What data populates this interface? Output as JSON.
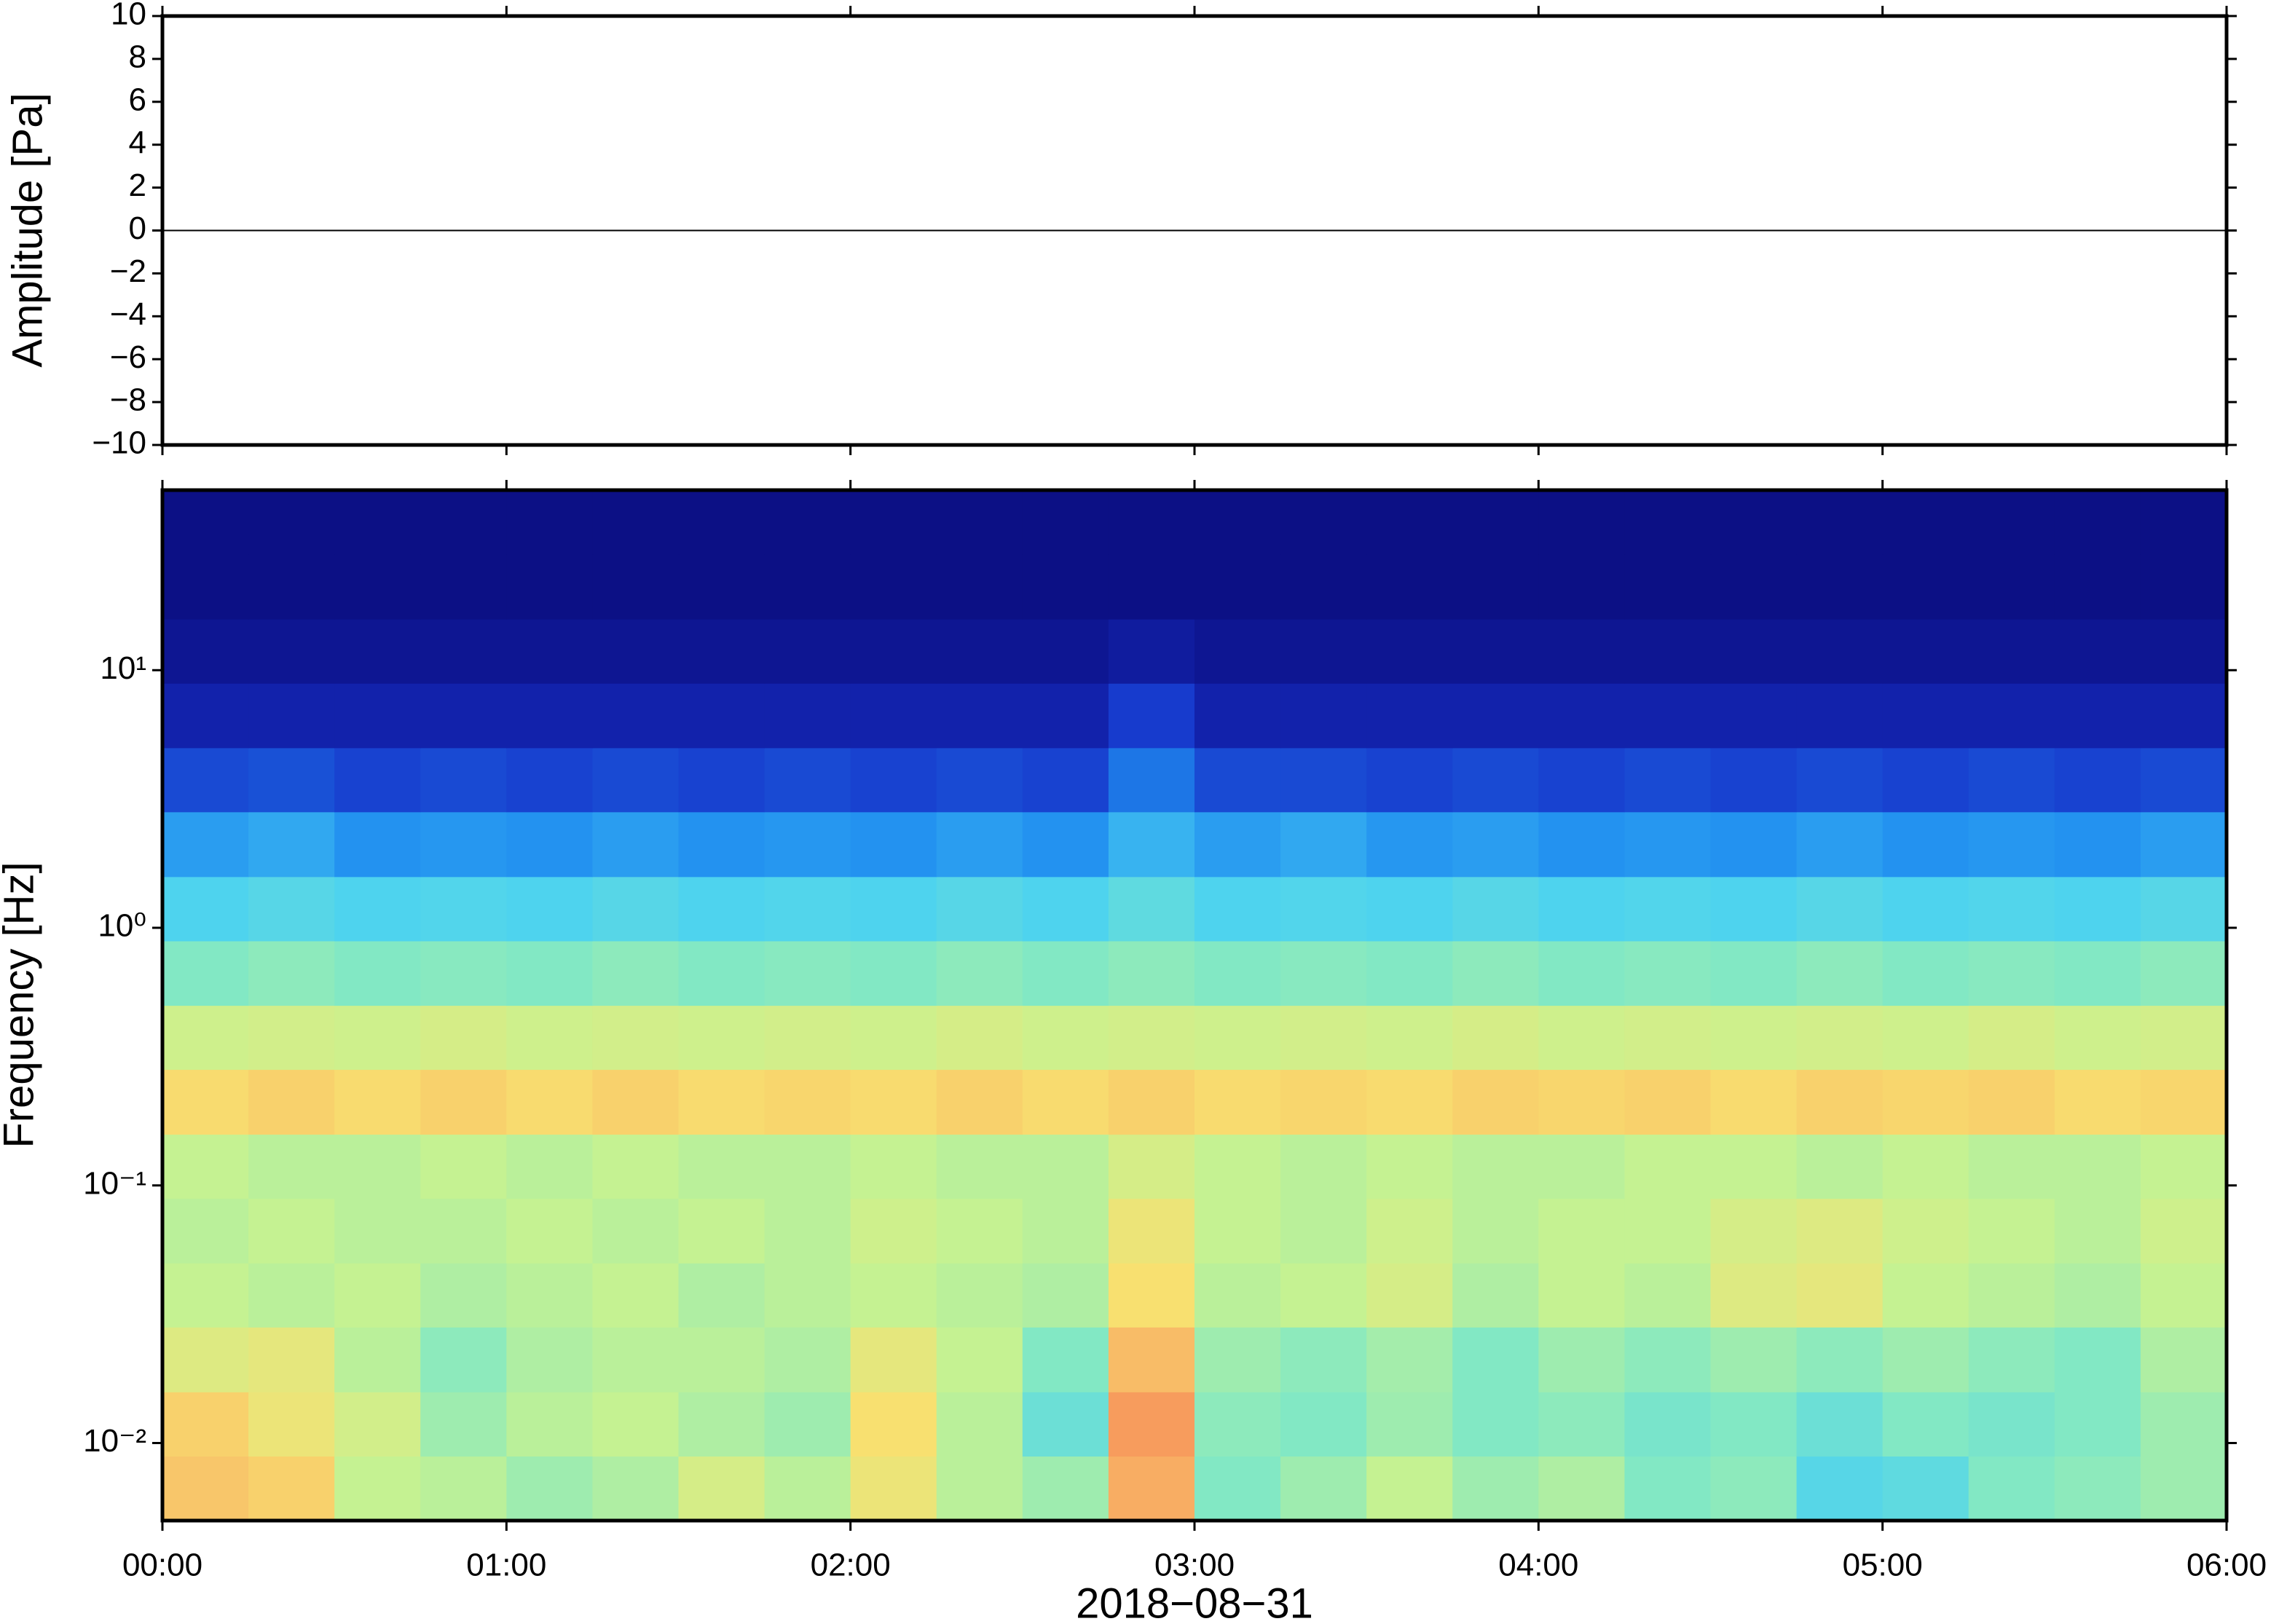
{
  "chart_data": [
    {
      "type": "line",
      "ylabel": "Amplitude [Pa]",
      "xlim": [
        0,
        360
      ],
      "ylim": [
        -10,
        10
      ],
      "yticks": [
        {
          "value": -10,
          "label": "−10"
        },
        {
          "value": -8,
          "label": "−8"
        },
        {
          "value": -6,
          "label": "−6"
        },
        {
          "value": -4,
          "label": "−4"
        },
        {
          "value": -2,
          "label": "−2"
        },
        0,
        2,
        4,
        6,
        8,
        10
      ],
      "x": [
        0,
        30,
        60,
        90,
        120,
        150,
        180,
        210,
        240,
        270,
        300,
        330,
        360
      ],
      "values": [
        0,
        0,
        0,
        0,
        0,
        0,
        0,
        0,
        0,
        0,
        0,
        0,
        0
      ],
      "color": "#000000"
    },
    {
      "type": "heatmap",
      "ylabel": "Frequency [Hz]",
      "xlabel": "2018−08−31",
      "xlim": [
        0,
        360
      ],
      "ylim": [
        0.005,
        50
      ],
      "log_y": true,
      "xticks": [
        {
          "value": 0,
          "label": "00:00"
        },
        {
          "value": 60,
          "label": "01:00"
        },
        {
          "value": 120,
          "label": "02:00"
        },
        {
          "value": 180,
          "label": "03:00"
        },
        {
          "value": 240,
          "label": "04:00"
        },
        {
          "value": 300,
          "label": "05:00"
        },
        {
          "value": 360,
          "label": "06:00"
        }
      ],
      "yticks": [
        {
          "value": 0.01,
          "label": "10⁻²"
        },
        {
          "value": 0.1,
          "label": "10⁻¹"
        },
        {
          "value": 1,
          "label": "10⁰"
        },
        {
          "value": 10,
          "label": "10¹"
        }
      ],
      "colormap": [
        "#0a0a78",
        "#1630c8",
        "#1f8cf0",
        "#4cd2f0",
        "#82e8c4",
        "#c8f290",
        "#f8e070",
        "#f8a060",
        "#e83020"
      ],
      "x_bins": [
        0,
        15,
        30,
        45,
        60,
        75,
        90,
        105,
        120,
        135,
        150,
        165,
        180,
        195,
        210,
        225,
        240,
        255,
        270,
        285,
        300,
        315,
        330,
        345,
        360
      ],
      "y_bins": [
        0.005,
        0.0089,
        0.0158,
        0.0282,
        0.05,
        0.089,
        0.158,
        0.282,
        0.5,
        0.89,
        1.58,
        2.82,
        5,
        8.9,
        15.8,
        28.2,
        50
      ],
      "values": [
        [
          0.8,
          0.78,
          0.62,
          0.6,
          0.55,
          0.58,
          0.66,
          0.6,
          0.72,
          0.6,
          0.55,
          0.85,
          0.5,
          0.55,
          0.62,
          0.55,
          0.58,
          0.5,
          0.52,
          0.4,
          0.42,
          0.5,
          0.52,
          0.55
        ],
        [
          0.78,
          0.72,
          0.65,
          0.55,
          0.6,
          0.62,
          0.58,
          0.55,
          0.75,
          0.6,
          0.45,
          0.88,
          0.52,
          0.5,
          0.55,
          0.5,
          0.52,
          0.48,
          0.5,
          0.45,
          0.5,
          0.48,
          0.5,
          0.55
        ],
        [
          0.68,
          0.7,
          0.6,
          0.52,
          0.58,
          0.6,
          0.6,
          0.58,
          0.7,
          0.62,
          0.5,
          0.82,
          0.55,
          0.52,
          0.56,
          0.5,
          0.55,
          0.52,
          0.55,
          0.52,
          0.55,
          0.52,
          0.5,
          0.58
        ],
        [
          0.62,
          0.6,
          0.62,
          0.58,
          0.6,
          0.62,
          0.58,
          0.6,
          0.62,
          0.6,
          0.58,
          0.75,
          0.6,
          0.62,
          0.66,
          0.58,
          0.62,
          0.6,
          0.68,
          0.7,
          0.62,
          0.6,
          0.58,
          0.62
        ],
        [
          0.6,
          0.62,
          0.6,
          0.6,
          0.62,
          0.6,
          0.62,
          0.6,
          0.64,
          0.62,
          0.6,
          0.72,
          0.62,
          0.6,
          0.64,
          0.6,
          0.62,
          0.62,
          0.66,
          0.68,
          0.64,
          0.62,
          0.6,
          0.64
        ],
        [
          0.62,
          0.6,
          0.6,
          0.62,
          0.6,
          0.62,
          0.6,
          0.6,
          0.62,
          0.6,
          0.6,
          0.66,
          0.62,
          0.6,
          0.62,
          0.6,
          0.6,
          0.62,
          0.62,
          0.6,
          0.62,
          0.6,
          0.6,
          0.62
        ],
        [
          0.76,
          0.78,
          0.76,
          0.78,
          0.76,
          0.78,
          0.76,
          0.77,
          0.76,
          0.78,
          0.76,
          0.78,
          0.76,
          0.77,
          0.76,
          0.78,
          0.77,
          0.78,
          0.76,
          0.78,
          0.77,
          0.78,
          0.76,
          0.77
        ],
        [
          0.64,
          0.65,
          0.64,
          0.66,
          0.64,
          0.65,
          0.64,
          0.65,
          0.64,
          0.66,
          0.64,
          0.65,
          0.64,
          0.65,
          0.64,
          0.66,
          0.64,
          0.65,
          0.64,
          0.65,
          0.64,
          0.66,
          0.64,
          0.65
        ],
        [
          0.5,
          0.52,
          0.5,
          0.51,
          0.5,
          0.52,
          0.5,
          0.51,
          0.5,
          0.52,
          0.5,
          0.52,
          0.5,
          0.51,
          0.5,
          0.52,
          0.5,
          0.51,
          0.5,
          0.52,
          0.5,
          0.51,
          0.5,
          0.52
        ],
        [
          0.38,
          0.4,
          0.38,
          0.39,
          0.38,
          0.4,
          0.38,
          0.39,
          0.38,
          0.4,
          0.38,
          0.42,
          0.38,
          0.39,
          0.38,
          0.4,
          0.38,
          0.39,
          0.38,
          0.4,
          0.38,
          0.39,
          0.38,
          0.4
        ],
        [
          0.28,
          0.3,
          0.26,
          0.27,
          0.26,
          0.28,
          0.26,
          0.27,
          0.26,
          0.28,
          0.26,
          0.32,
          0.28,
          0.3,
          0.27,
          0.28,
          0.26,
          0.27,
          0.26,
          0.28,
          0.26,
          0.27,
          0.26,
          0.28
        ],
        [
          0.16,
          0.17,
          0.15,
          0.16,
          0.15,
          0.16,
          0.15,
          0.16,
          0.15,
          0.16,
          0.15,
          0.22,
          0.16,
          0.16,
          0.15,
          0.16,
          0.15,
          0.16,
          0.15,
          0.16,
          0.15,
          0.16,
          0.15,
          0.16
        ],
        [
          0.08,
          0.08,
          0.08,
          0.08,
          0.08,
          0.08,
          0.08,
          0.08,
          0.08,
          0.08,
          0.08,
          0.14,
          0.08,
          0.08,
          0.08,
          0.08,
          0.08,
          0.08,
          0.08,
          0.08,
          0.08,
          0.08,
          0.08,
          0.08
        ],
        [
          0.04,
          0.04,
          0.04,
          0.04,
          0.04,
          0.04,
          0.04,
          0.04,
          0.04,
          0.04,
          0.04,
          0.06,
          0.04,
          0.04,
          0.04,
          0.04,
          0.04,
          0.04,
          0.04,
          0.04,
          0.04,
          0.04,
          0.04,
          0.04
        ],
        [
          0.02,
          0.02,
          0.02,
          0.02,
          0.02,
          0.02,
          0.02,
          0.02,
          0.02,
          0.02,
          0.02,
          0.02,
          0.02,
          0.02,
          0.02,
          0.02,
          0.02,
          0.02,
          0.02,
          0.02,
          0.02,
          0.02,
          0.02,
          0.02
        ],
        [
          0.02,
          0.02,
          0.02,
          0.02,
          0.02,
          0.02,
          0.02,
          0.02,
          0.02,
          0.02,
          0.02,
          0.02,
          0.02,
          0.02,
          0.02,
          0.02,
          0.02,
          0.02,
          0.02,
          0.02,
          0.02,
          0.02,
          0.02,
          0.02
        ]
      ]
    }
  ]
}
